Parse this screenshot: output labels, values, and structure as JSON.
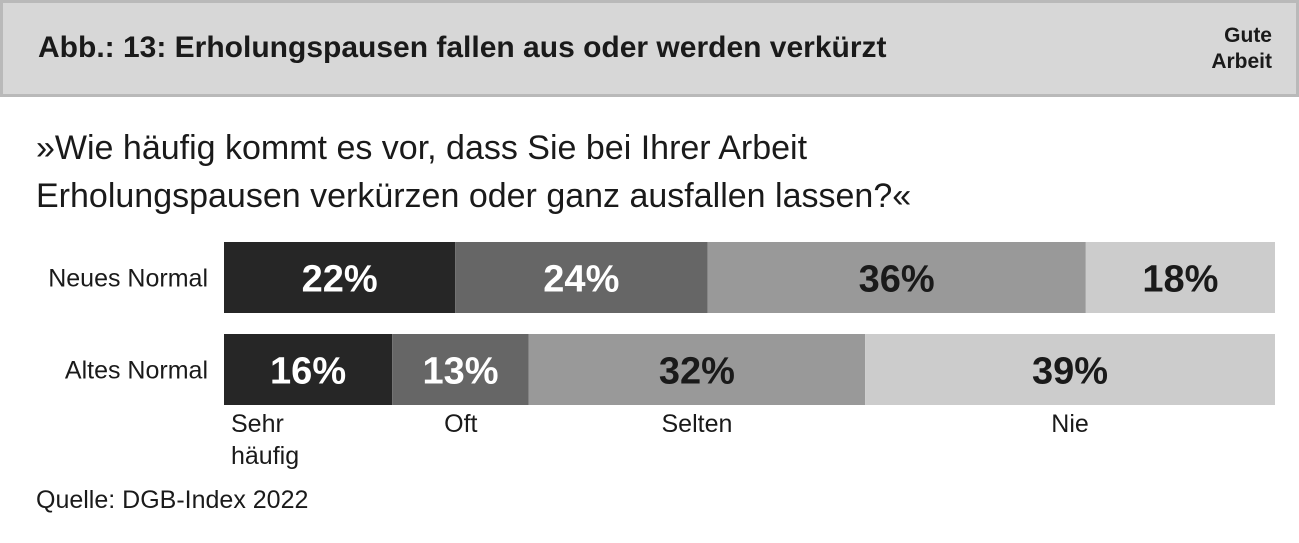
{
  "header": {
    "title": "Abb.: 13: Erholungspausen fallen aus oder werden verkürzt",
    "brand_line1": "Gute",
    "brand_line2": "Arbeit"
  },
  "question": {
    "line1": "»Wie häufig kommt es vor, dass Sie bei Ihrer Arbeit",
    "line2": "Erholungspausen verkürzen oder ganz ausfallen lassen?«"
  },
  "source": "Quelle: DGB-Index 2022",
  "colors": {
    "sehr_haeufig": "#262626",
    "oft": "#666666",
    "selten": "#999999",
    "nie": "#cccccc",
    "label_dark": "#1a1a1a",
    "label_light": "#ffffff"
  },
  "chart_data": {
    "type": "bar",
    "orientation": "horizontal-stacked-100",
    "title": "Abb.: 13: Erholungspausen fallen aus oder werden verkürzt",
    "categories": [
      "Neues Normal",
      "Altes Normal"
    ],
    "series": [
      {
        "name": "Sehr häufig",
        "legend_lines": [
          "Sehr",
          "häufig"
        ],
        "values": [
          22,
          16
        ],
        "labels": [
          "22%",
          "16%"
        ]
      },
      {
        "name": "Oft",
        "legend_lines": [
          "Oft"
        ],
        "values": [
          24,
          13
        ],
        "labels": [
          "24%",
          "13%"
        ]
      },
      {
        "name": "Selten",
        "legend_lines": [
          "Selten"
        ],
        "values": [
          36,
          32
        ],
        "labels": [
          "36%",
          "32%"
        ]
      },
      {
        "name": "Nie",
        "legend_lines": [
          "Nie"
        ],
        "values": [
          18,
          39
        ],
        "labels": [
          "18%",
          "39%"
        ]
      }
    ],
    "unit": "%",
    "xlim": [
      0,
      100
    ],
    "legend_position": "bottom"
  }
}
